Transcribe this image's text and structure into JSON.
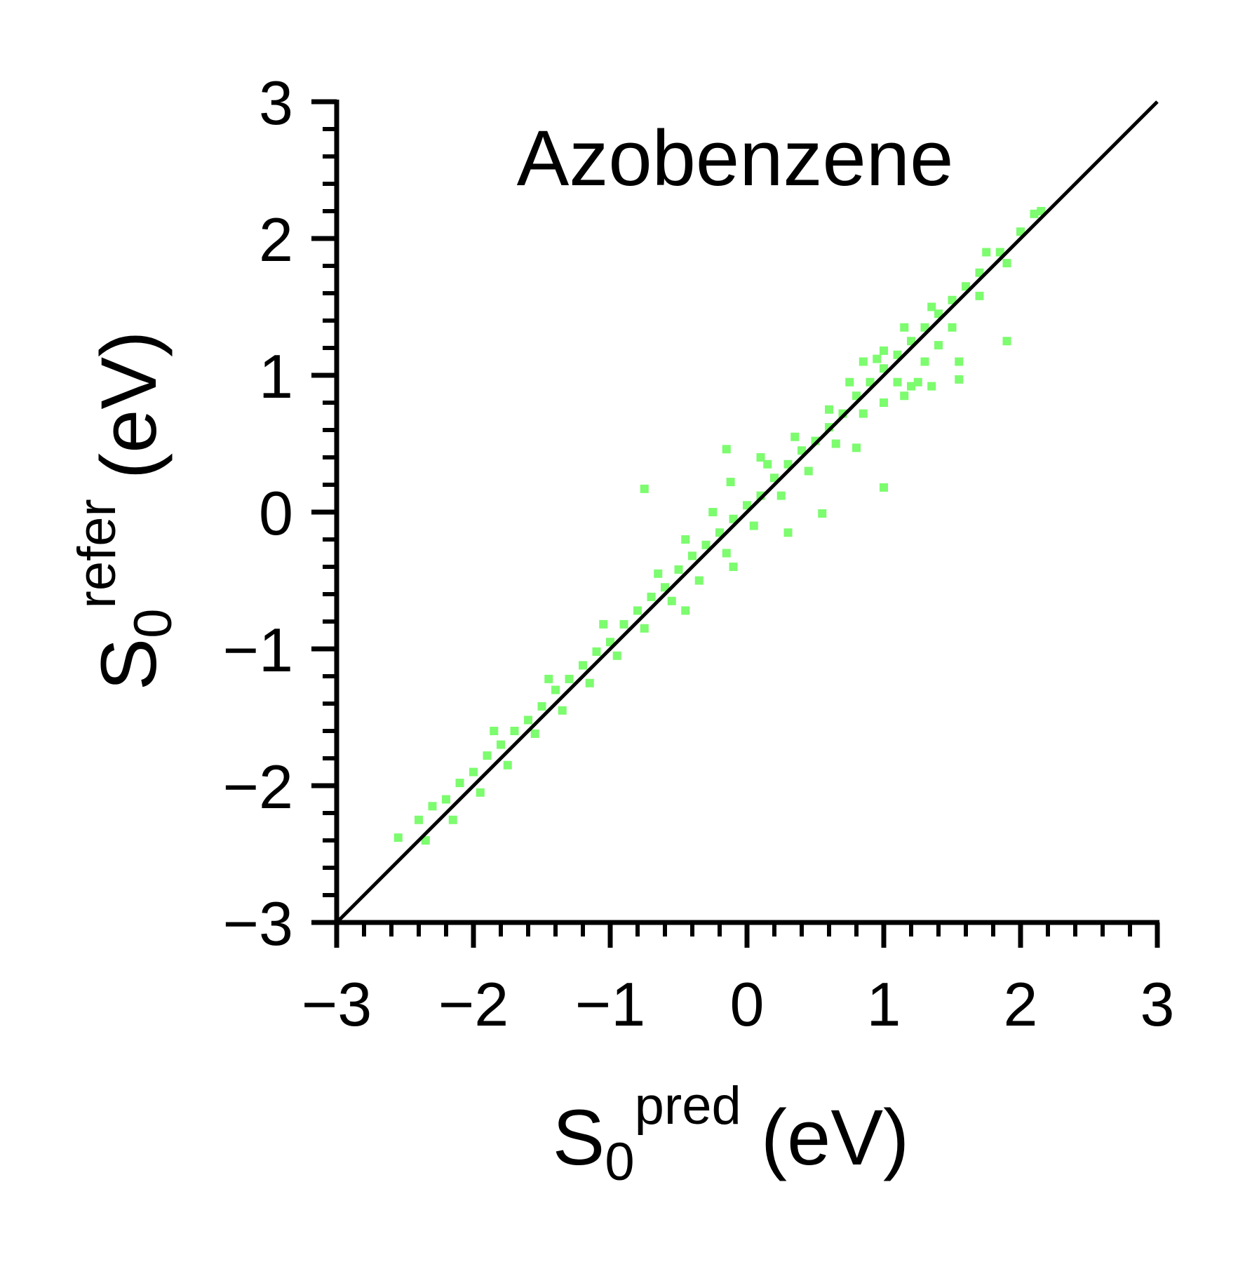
{
  "chart_data": {
    "type": "scatter",
    "title": "Azobenzene",
    "xlabel": {
      "base": "S",
      "sub": "0",
      "sup": "pred",
      "unit": "(eV)"
    },
    "ylabel": {
      "base": "S",
      "sub": "0",
      "sup": "refer",
      "unit": "(eV)"
    },
    "xlim": [
      -3,
      3
    ],
    "ylim": [
      -3,
      3
    ],
    "x_ticks": [
      "−3",
      "−2",
      "−1",
      "0",
      "1",
      "2",
      "3"
    ],
    "y_ticks": [
      "−3",
      "−2",
      "−1",
      "0",
      "1",
      "2",
      "3"
    ],
    "grid": false,
    "reference_line": {
      "x": [
        -3,
        3
      ],
      "y": [
        -3,
        3
      ],
      "color": "#000000"
    },
    "series": [
      {
        "color": "#7cfc6e",
        "marker": "square",
        "points": [
          [
            -2.55,
            -2.38
          ],
          [
            -2.4,
            -2.25
          ],
          [
            -2.3,
            -2.15
          ],
          [
            -2.2,
            -2.1
          ],
          [
            -2.1,
            -1.98
          ],
          [
            -2.0,
            -1.9
          ],
          [
            -1.9,
            -1.78
          ],
          [
            -1.8,
            -1.7
          ],
          [
            -1.7,
            -1.6
          ],
          [
            -1.6,
            -1.52
          ],
          [
            -1.5,
            -1.42
          ],
          [
            -1.4,
            -1.3
          ],
          [
            -1.3,
            -1.22
          ],
          [
            -1.2,
            -1.12
          ],
          [
            -1.1,
            -1.02
          ],
          [
            -1.0,
            -0.95
          ],
          [
            -0.9,
            -0.82
          ],
          [
            -0.8,
            -0.72
          ],
          [
            -0.7,
            -0.62
          ],
          [
            -0.6,
            -0.55
          ],
          [
            -0.5,
            -0.42
          ],
          [
            -0.4,
            -0.32
          ],
          [
            -0.3,
            -0.24
          ],
          [
            -0.2,
            -0.15
          ],
          [
            -0.1,
            -0.05
          ],
          [
            0.0,
            0.05
          ],
          [
            0.1,
            0.12
          ],
          [
            0.2,
            0.25
          ],
          [
            0.3,
            0.35
          ],
          [
            0.4,
            0.45
          ],
          [
            0.5,
            0.52
          ],
          [
            0.6,
            0.62
          ],
          [
            0.7,
            0.72
          ],
          [
            0.8,
            0.85
          ],
          [
            0.9,
            0.95
          ],
          [
            1.0,
            1.05
          ],
          [
            1.1,
            1.15
          ],
          [
            1.2,
            1.25
          ],
          [
            1.3,
            1.35
          ],
          [
            1.4,
            1.45
          ],
          [
            1.5,
            1.55
          ],
          [
            1.6,
            1.65
          ],
          [
            1.7,
            1.75
          ],
          [
            1.85,
            1.9
          ],
          [
            2.0,
            2.05
          ],
          [
            2.1,
            2.18
          ],
          [
            2.15,
            2.2
          ],
          [
            -2.35,
            -2.4
          ],
          [
            -2.15,
            -2.25
          ],
          [
            -1.95,
            -2.05
          ],
          [
            -1.75,
            -1.85
          ],
          [
            -1.55,
            -1.62
          ],
          [
            -1.35,
            -1.45
          ],
          [
            -1.15,
            -1.25
          ],
          [
            -0.95,
            -1.05
          ],
          [
            -0.75,
            -0.85
          ],
          [
            -0.55,
            -0.65
          ],
          [
            -0.35,
            -0.5
          ],
          [
            -0.15,
            -0.3
          ],
          [
            0.05,
            -0.1
          ],
          [
            0.25,
            0.12
          ],
          [
            0.45,
            0.3
          ],
          [
            0.65,
            0.5
          ],
          [
            0.85,
            0.72
          ],
          [
            1.0,
            0.8
          ],
          [
            1.1,
            0.95
          ],
          [
            1.3,
            1.1
          ],
          [
            1.5,
            1.35
          ],
          [
            1.7,
            1.58
          ],
          [
            1.9,
            1.82
          ],
          [
            -1.85,
            -1.6
          ],
          [
            -1.45,
            -1.22
          ],
          [
            -1.05,
            -0.82
          ],
          [
            -0.65,
            -0.45
          ],
          [
            -0.45,
            -0.2
          ],
          [
            -0.25,
            0.0
          ],
          [
            0.15,
            0.35
          ],
          [
            0.35,
            0.55
          ],
          [
            0.75,
            0.95
          ],
          [
            0.85,
            1.1
          ],
          [
            0.95,
            1.12
          ],
          [
            1.15,
            1.35
          ],
          [
            1.35,
            1.5
          ],
          [
            1.75,
            1.9
          ],
          [
            -0.75,
            0.17
          ],
          [
            -0.15,
            0.46
          ],
          [
            -0.12,
            0.22
          ],
          [
            0.55,
            -0.01
          ],
          [
            0.8,
            0.47
          ],
          [
            1.0,
            0.18
          ],
          [
            1.25,
            0.95
          ],
          [
            1.35,
            0.92
          ],
          [
            1.55,
            0.97
          ],
          [
            1.55,
            1.1
          ],
          [
            1.9,
            1.25
          ],
          [
            1.4,
            1.22
          ],
          [
            -0.45,
            -0.72
          ],
          [
            -0.1,
            -0.4
          ],
          [
            0.1,
            0.4
          ],
          [
            0.3,
            -0.15
          ],
          [
            0.6,
            0.75
          ],
          [
            1.2,
            0.92
          ],
          [
            1.0,
            1.18
          ],
          [
            1.15,
            0.85
          ]
        ]
      }
    ]
  }
}
